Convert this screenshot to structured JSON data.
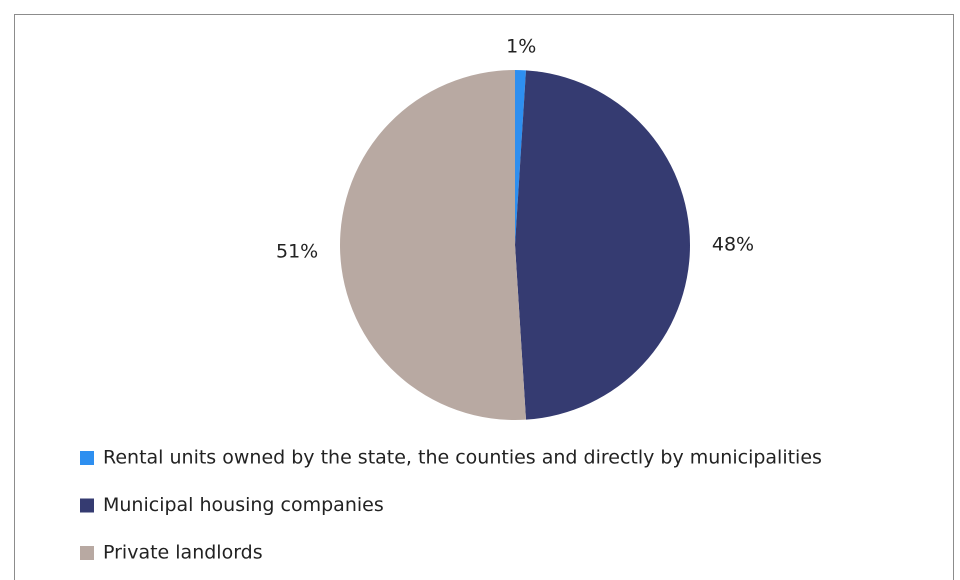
{
  "chart_data": {
    "type": "pie",
    "categories": [
      "Rental units owned by the state, the counties and directly by municipalities",
      "Municipal housing companies",
      "Private landlords"
    ],
    "values": [
      1,
      48,
      51
    ],
    "value_labels": [
      "1%",
      "48%",
      "51%"
    ],
    "colors": [
      "#2e8ff0",
      "#353b71",
      "#b8a9a2"
    ]
  }
}
